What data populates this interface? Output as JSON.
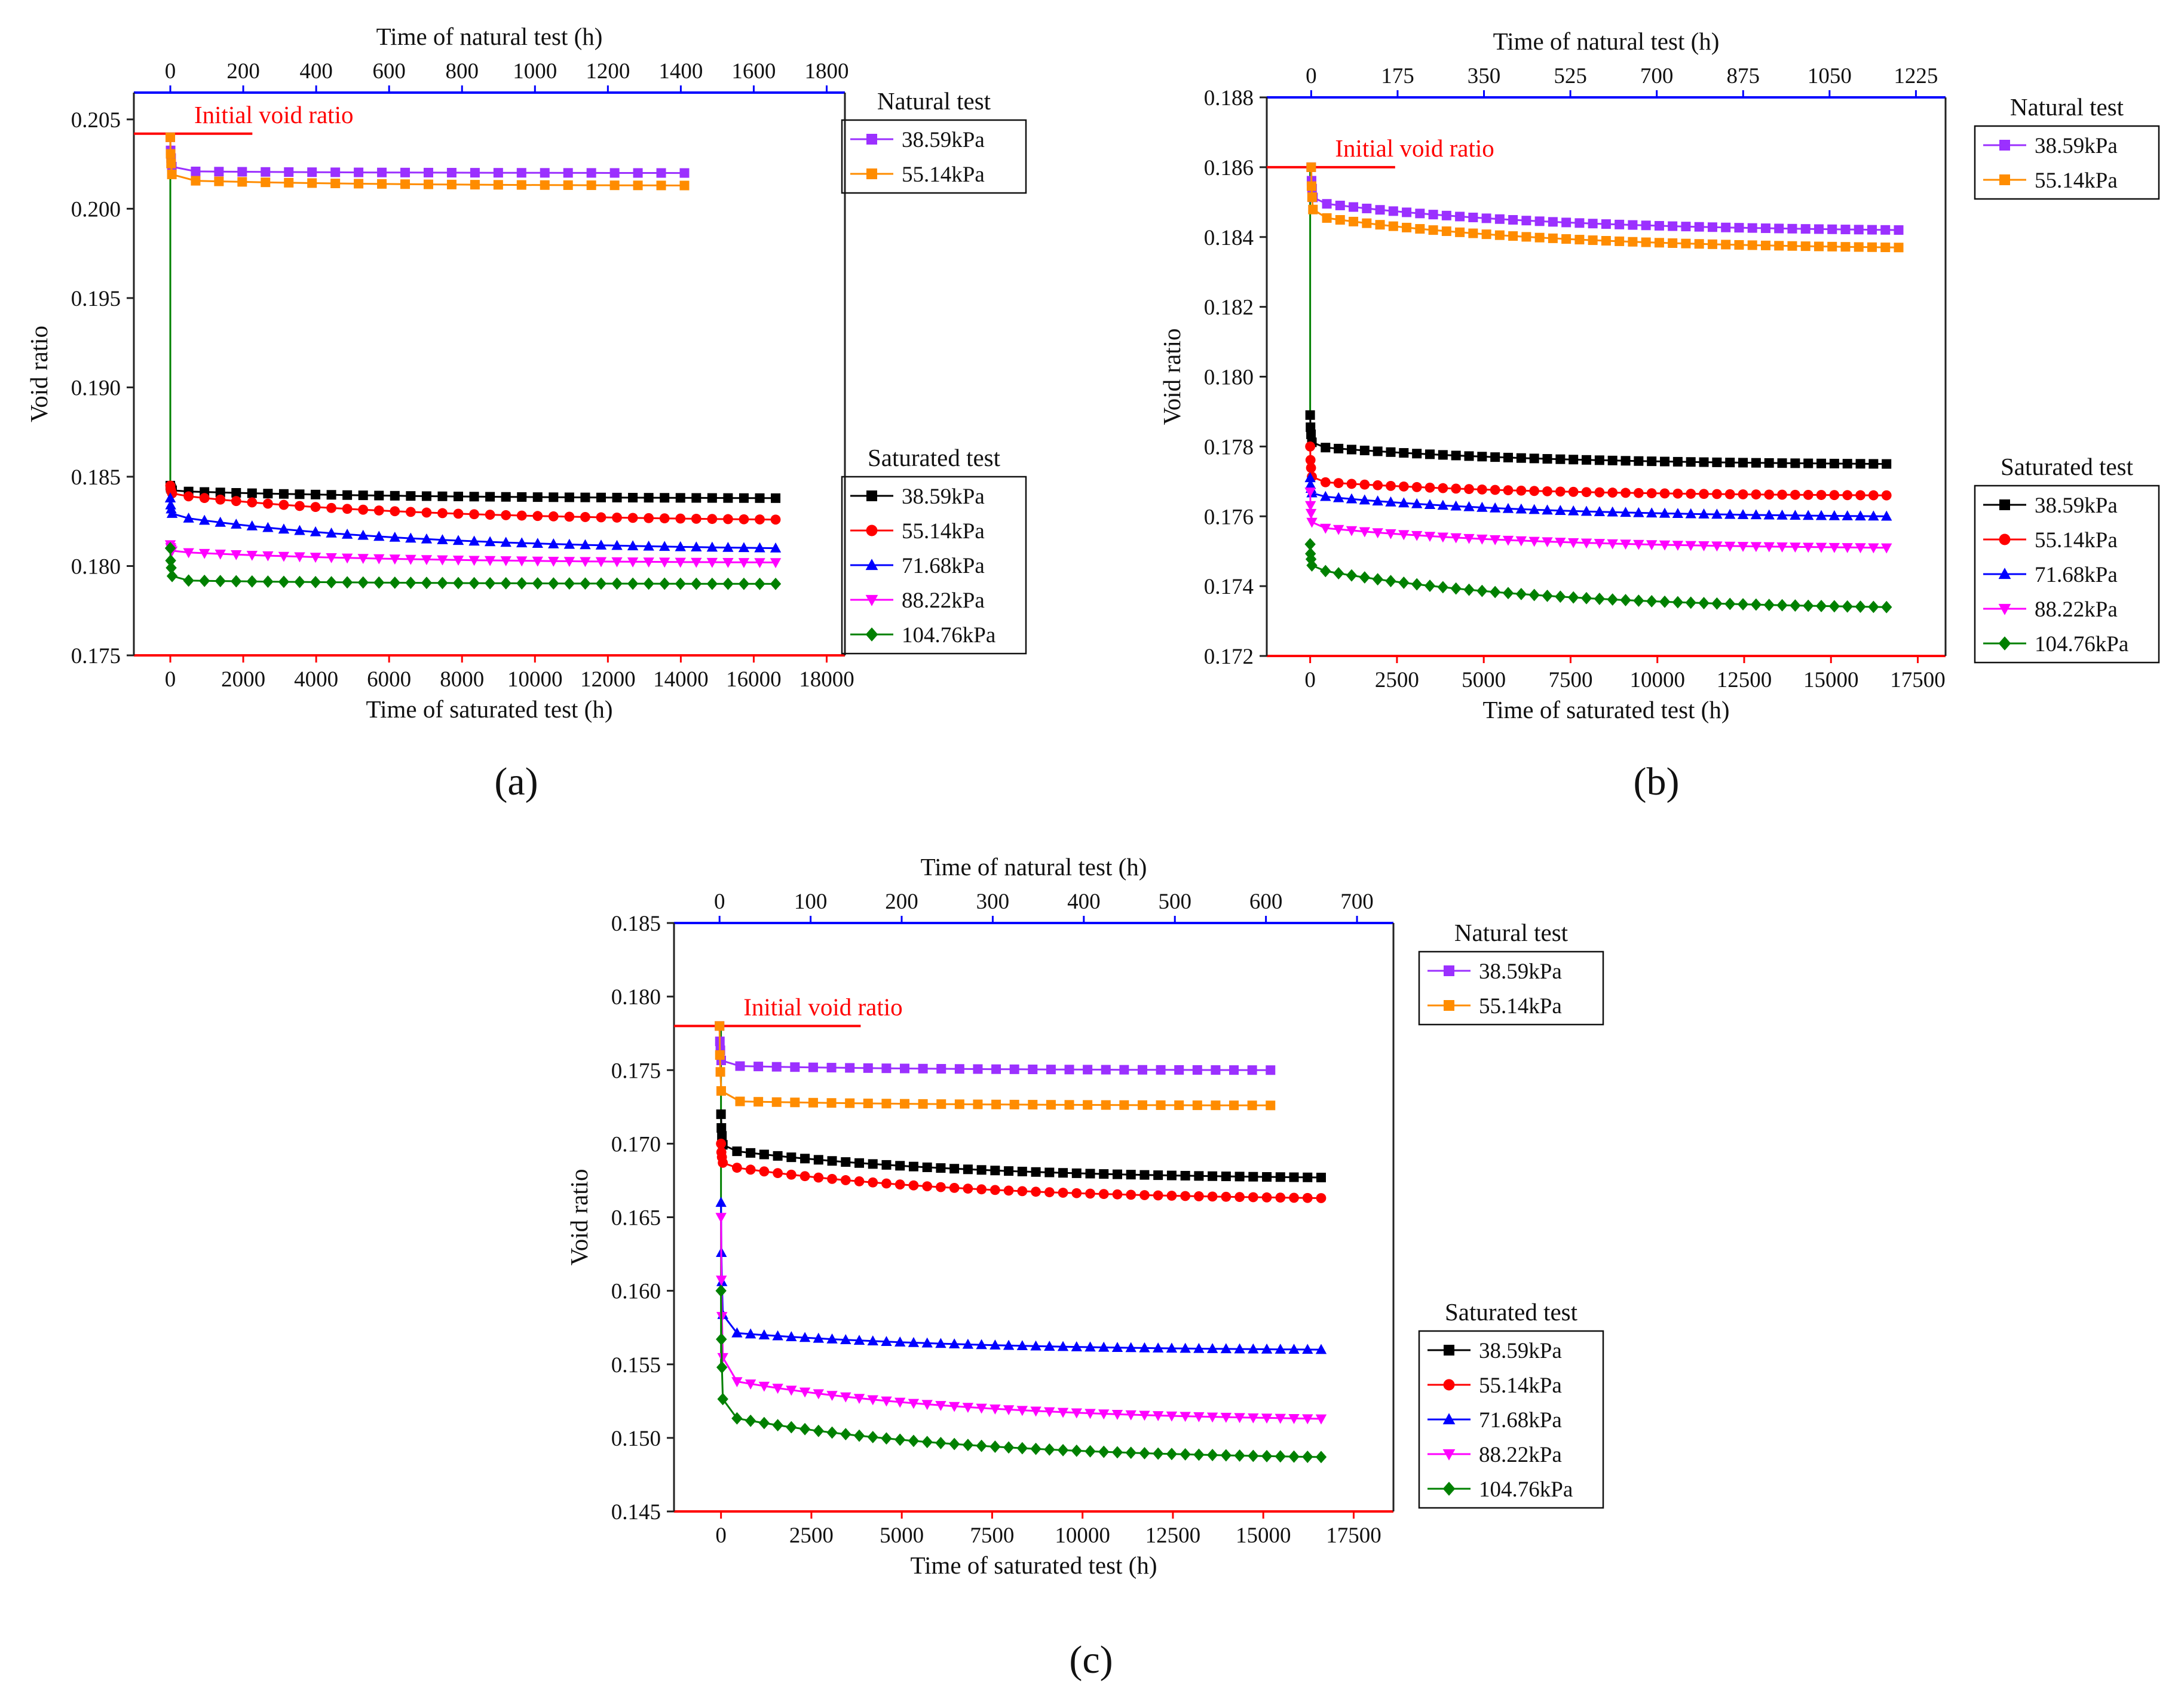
{
  "figure": {
    "legend_natural_title": "Natural test",
    "legend_saturated_title": "Saturated test"
  },
  "chart_data": [
    {
      "type": "line",
      "panel_label": "(a)",
      "title": "",
      "ylabel": "Void ratio",
      "xlabel": "Time of saturated test  (h)",
      "x2label": "Time of natural test  (h)",
      "ylim": [
        0.175,
        0.2065
      ],
      "xlim": [
        -1000,
        18500
      ],
      "x2lim": [
        -100,
        1850
      ],
      "yticks": [
        "0.175",
        "0.180",
        "0.185",
        "0.190",
        "0.195",
        "0.200",
        "0.205"
      ],
      "xticks": [
        "0",
        "2000",
        "4000",
        "6000",
        "8000",
        "10000",
        "12000",
        "14000",
        "16000",
        "18000"
      ],
      "x2ticks": [
        "0",
        "200",
        "400",
        "600",
        "800",
        "1000",
        "1200",
        "1400",
        "1600",
        "1800"
      ],
      "initial_void_ratio": {
        "label": "Initial void ratio",
        "value": 0.2042,
        "x2_end": 225
      },
      "connector": {
        "x": 0,
        "from": 0.2042,
        "to": 0.1842
      },
      "natural_series": [
        {
          "name": "38.59kPa",
          "color": "#9b30ff",
          "marker": "square",
          "start": 0.204,
          "plateau": 0.2021,
          "end": 0.202,
          "x_end": 1410,
          "n": 22
        },
        {
          "name": "55.14kPa",
          "color": "#ff8c00",
          "marker": "square",
          "start": 0.204,
          "plateau": 0.2016,
          "end": 0.2013,
          "x_end": 1410,
          "n": 22
        }
      ],
      "saturated_series": [
        {
          "name": "38.59kPa",
          "color": "#000000",
          "marker": "square",
          "start": 0.1845,
          "plateau": 0.1842,
          "end": 0.1838,
          "x_end": 16600,
          "n": 38
        },
        {
          "name": "55.14kPa",
          "color": "#ff0000",
          "marker": "circle",
          "start": 0.1845,
          "plateau": 0.184,
          "end": 0.1826,
          "x_end": 16600,
          "n": 38
        },
        {
          "name": "71.68kPa",
          "color": "#0000ff",
          "marker": "triangle-up",
          "start": 0.1838,
          "plateau": 0.1828,
          "end": 0.181,
          "x_end": 16600,
          "n": 38
        },
        {
          "name": "88.22kPa",
          "color": "#ff00ff",
          "marker": "triangle-down",
          "start": 0.1812,
          "plateau": 0.1808,
          "end": 0.1802,
          "x_end": 16600,
          "n": 38
        },
        {
          "name": "104.76kPa",
          "color": "#008000",
          "marker": "diamond",
          "start": 0.181,
          "plateau": 0.1792,
          "end": 0.179,
          "x_end": 16600,
          "n": 38
        }
      ]
    },
    {
      "type": "line",
      "panel_label": "(b)",
      "title": "",
      "ylabel": "Void ratio",
      "xlabel": "Time of saturated test  (h)",
      "x2label": "Time of natural test  (h)",
      "ylim": [
        0.172,
        0.188
      ],
      "xlim": [
        -1250,
        18300
      ],
      "x2lim": [
        -90,
        1285
      ],
      "yticks": [
        "0.172",
        "0.174",
        "0.176",
        "0.178",
        "0.180",
        "0.182",
        "0.184",
        "0.186",
        "0.188"
      ],
      "xticks": [
        "0",
        "2500",
        "5000",
        "7500",
        "10000",
        "12500",
        "15000",
        "17500"
      ],
      "x2ticks": [
        "0",
        "175",
        "350",
        "525",
        "700",
        "875",
        "1050",
        "1225"
      ],
      "initial_void_ratio": {
        "label": "Initial void ratio",
        "value": 0.186,
        "x2_end": 170
      },
      "connector": {
        "x": 0,
        "from": 0.186,
        "to": 0.1789
      },
      "natural_series": [
        {
          "name": "38.59kPa",
          "color": "#9b30ff",
          "marker": "square",
          "start": 0.186,
          "plateau": 0.185,
          "end": 0.1842,
          "x_end": 1190,
          "n": 44
        },
        {
          "name": "55.14kPa",
          "color": "#ff8c00",
          "marker": "square",
          "start": 0.186,
          "plateau": 0.1846,
          "end": 0.1837,
          "x_end": 1190,
          "n": 44
        }
      ],
      "saturated_series": [
        {
          "name": "38.59kPa",
          "color": "#000000",
          "marker": "square",
          "start": 0.1789,
          "plateau": 0.178,
          "end": 0.1775,
          "x_end": 16600,
          "n": 44
        },
        {
          "name": "55.14kPa",
          "color": "#ff0000",
          "marker": "circle",
          "start": 0.178,
          "plateau": 0.177,
          "end": 0.1766,
          "x_end": 16600,
          "n": 44
        },
        {
          "name": "71.68kPa",
          "color": "#0000ff",
          "marker": "triangle-up",
          "start": 0.1771,
          "plateau": 0.1766,
          "end": 0.176,
          "x_end": 16600,
          "n": 44
        },
        {
          "name": "88.22kPa",
          "color": "#ff00ff",
          "marker": "triangle-down",
          "start": 0.1767,
          "plateau": 0.1757,
          "end": 0.1751,
          "x_end": 16600,
          "n": 44
        },
        {
          "name": "104.76kPa",
          "color": "#008000",
          "marker": "diamond",
          "start": 0.1752,
          "plateau": 0.1745,
          "end": 0.1734,
          "x_end": 16600,
          "n": 44
        }
      ]
    },
    {
      "type": "line",
      "panel_label": "(c)",
      "title": "",
      "ylabel": "Void ratio",
      "xlabel": "Time of saturated test  (h)",
      "x2label": "Time of natural test  (h)",
      "ylim": [
        0.145,
        0.185
      ],
      "xlim": [
        -1300,
        18600
      ],
      "x2lim": [
        -50,
        740
      ],
      "yticks": [
        "0.145",
        "0.150",
        "0.155",
        "0.160",
        "0.165",
        "0.170",
        "0.175",
        "0.180",
        "0.185"
      ],
      "xticks": [
        "0",
        "2500",
        "5000",
        "7500",
        "10000",
        "12500",
        "15000",
        "17500"
      ],
      "x2ticks": [
        "0",
        "100",
        "200",
        "300",
        "400",
        "500",
        "600",
        "700"
      ],
      "initial_void_ratio": {
        "label": "Initial void ratio",
        "value": 0.178,
        "x2_end": 155
      },
      "connector": {
        "x": 0,
        "from": 0.178,
        "to": 0.1545
      },
      "natural_series": [
        {
          "name": "38.59kPa",
          "color": "#9b30ff",
          "marker": "square",
          "start": 0.178,
          "plateau": 0.1753,
          "end": 0.175,
          "x_end": 605,
          "n": 30
        },
        {
          "name": "55.14kPa",
          "color": "#ff8c00",
          "marker": "square",
          "start": 0.178,
          "plateau": 0.1729,
          "end": 0.1726,
          "x_end": 605,
          "n": 30
        }
      ],
      "saturated_series": [
        {
          "name": "38.59kPa",
          "color": "#000000",
          "marker": "square",
          "start": 0.172,
          "plateau": 0.1696,
          "end": 0.1677,
          "x_end": 16600,
          "n": 44
        },
        {
          "name": "55.14kPa",
          "color": "#ff0000",
          "marker": "circle",
          "start": 0.17,
          "plateau": 0.1685,
          "end": 0.1663,
          "x_end": 16600,
          "n": 44
        },
        {
          "name": "71.68kPa",
          "color": "#0000ff",
          "marker": "triangle-up",
          "start": 0.166,
          "plateau": 0.1572,
          "end": 0.156,
          "x_end": 16600,
          "n": 44
        },
        {
          "name": "88.22kPa",
          "color": "#ff00ff",
          "marker": "triangle-down",
          "start": 0.165,
          "plateau": 0.154,
          "end": 0.1513,
          "x_end": 16600,
          "n": 44
        },
        {
          "name": "104.76kPa",
          "color": "#008000",
          "marker": "diamond",
          "start": 0.16,
          "plateau": 0.1515,
          "end": 0.1487,
          "x_end": 16600,
          "n": 44
        }
      ]
    }
  ]
}
